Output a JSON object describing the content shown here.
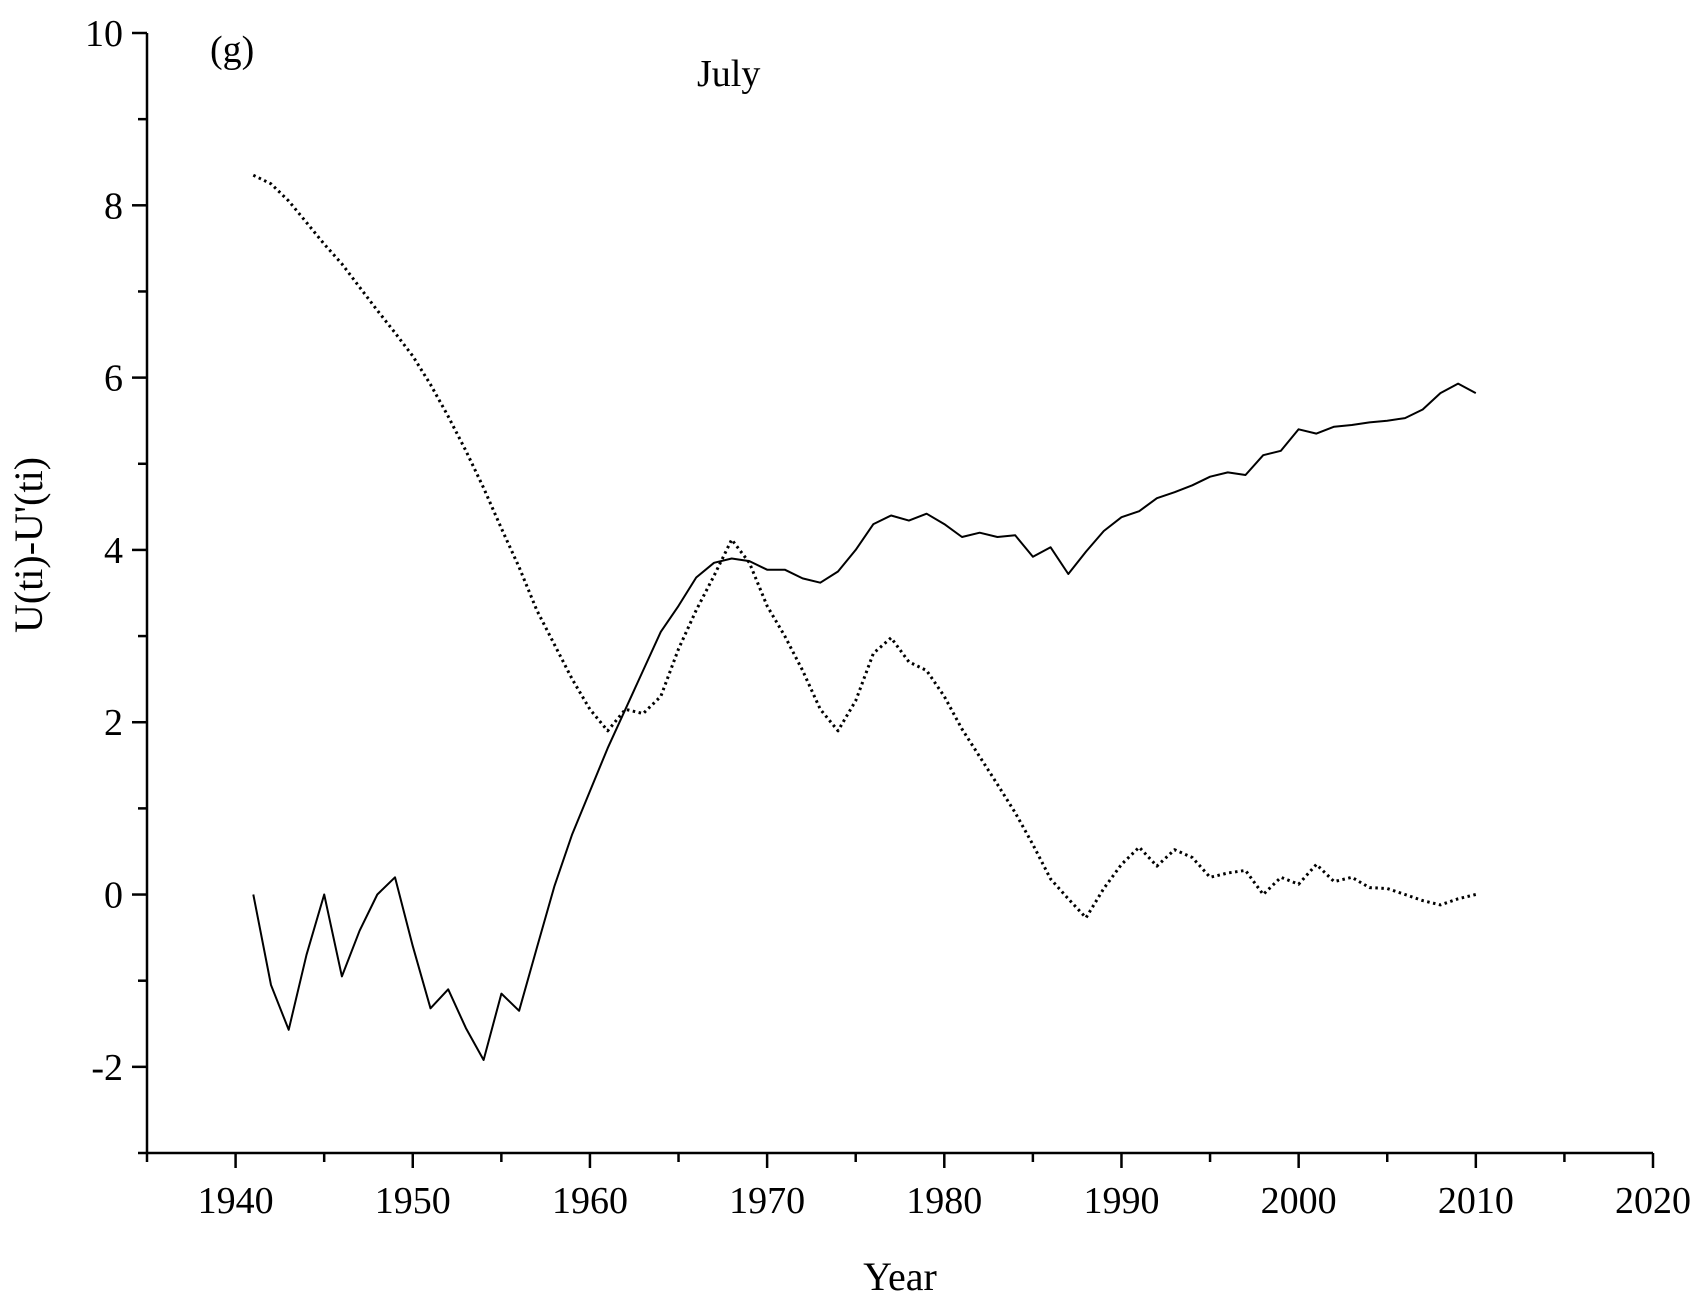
{
  "chart_data": {
    "type": "line",
    "panel_label": "(g)",
    "title": "July",
    "xlabel": "Year",
    "ylabel": "U(ti)-U'(ti)",
    "xlim": [
      1935,
      2020
    ],
    "ylim": [
      -3,
      10
    ],
    "x_ticks": [
      1940,
      1950,
      1960,
      1970,
      1980,
      1990,
      2000,
      2010,
      2020
    ],
    "y_ticks": [
      -2,
      0,
      2,
      4,
      6,
      8,
      10
    ],
    "grid": false,
    "legend": "none",
    "x": [
      1941,
      1942,
      1943,
      1944,
      1945,
      1946,
      1947,
      1948,
      1949,
      1950,
      1951,
      1952,
      1953,
      1954,
      1955,
      1956,
      1957,
      1958,
      1959,
      1960,
      1961,
      1962,
      1963,
      1964,
      1965,
      1966,
      1967,
      1968,
      1969,
      1970,
      1971,
      1972,
      1973,
      1974,
      1975,
      1976,
      1977,
      1978,
      1979,
      1980,
      1981,
      1982,
      1983,
      1984,
      1985,
      1986,
      1987,
      1988,
      1989,
      1990,
      1991,
      1992,
      1993,
      1994,
      1995,
      1996,
      1997,
      1998,
      1999,
      2000,
      2001,
      2002,
      2003,
      2004,
      2005,
      2006,
      2007,
      2008,
      2009,
      2010
    ],
    "series": [
      {
        "style": "solid",
        "color": "#000000",
        "values": [
          0.0,
          -1.05,
          -1.57,
          -0.7,
          0.0,
          -0.95,
          -0.42,
          0.0,
          0.2,
          -0.6,
          -1.32,
          -1.1,
          -1.55,
          -1.92,
          -1.15,
          -1.35,
          -0.62,
          0.1,
          0.7,
          1.2,
          1.7,
          2.15,
          2.6,
          3.05,
          3.35,
          3.68,
          3.85,
          3.9,
          3.87,
          3.77,
          3.77,
          3.67,
          3.62,
          3.75,
          4.0,
          4.3,
          4.4,
          4.34,
          4.42,
          4.3,
          4.15,
          4.2,
          4.15,
          4.17,
          3.92,
          4.03,
          3.72,
          3.98,
          4.22,
          4.38,
          4.45,
          4.6,
          4.67,
          4.75,
          4.85,
          4.9,
          4.87,
          5.1,
          5.15,
          5.4,
          5.35,
          5.43,
          5.45,
          5.48,
          5.5,
          5.53,
          5.63,
          5.82,
          5.93,
          5.82
        ]
      },
      {
        "style": "dotted",
        "color": "#000000",
        "values": [
          8.35,
          8.25,
          8.05,
          7.8,
          7.55,
          7.32,
          7.05,
          6.78,
          6.52,
          6.25,
          5.92,
          5.55,
          5.15,
          4.72,
          4.25,
          3.8,
          3.3,
          2.9,
          2.5,
          2.15,
          1.9,
          2.15,
          2.1,
          2.3,
          2.85,
          3.3,
          3.7,
          4.12,
          3.85,
          3.35,
          3.0,
          2.6,
          2.15,
          1.9,
          2.25,
          2.8,
          2.98,
          2.7,
          2.6,
          2.3,
          1.92,
          1.6,
          1.28,
          0.95,
          0.58,
          0.18,
          -0.05,
          -0.27,
          0.07,
          0.35,
          0.55,
          0.33,
          0.52,
          0.43,
          0.2,
          0.25,
          0.28,
          0.0,
          0.2,
          0.12,
          0.35,
          0.15,
          0.2,
          0.08,
          0.07,
          0.0,
          -0.07,
          -0.12,
          -0.05,
          0.0
        ]
      }
    ]
  }
}
